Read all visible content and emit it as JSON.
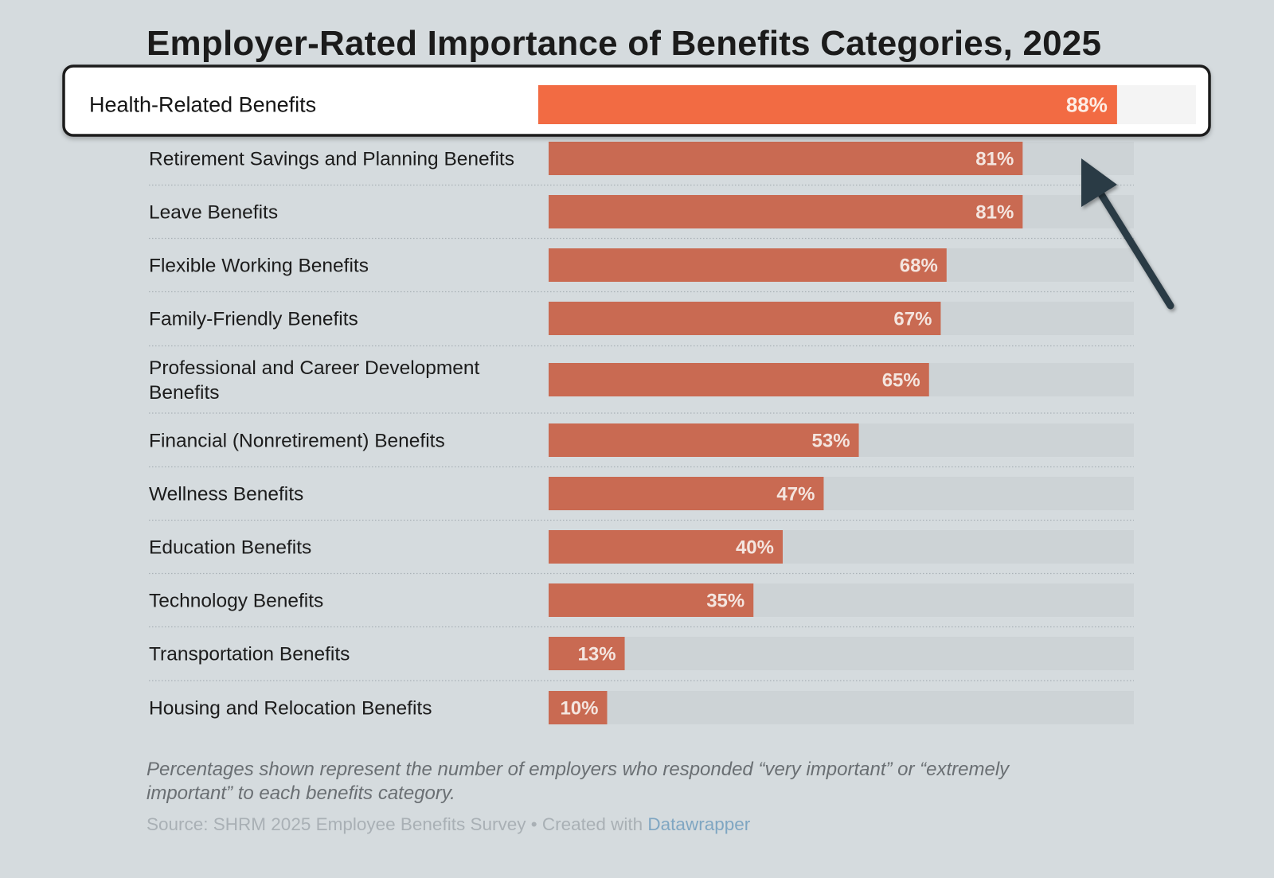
{
  "chart_data": {
    "type": "bar",
    "orientation": "horizontal",
    "title": "Employer-Rated Importance of Benefits Categories, 2025",
    "xlim": [
      0,
      100
    ],
    "value_suffix": "%",
    "highlighted_category": "Health-Related Benefits",
    "categories": [
      "Health-Related Benefits",
      "Retirement Savings and Planning Benefits",
      "Leave Benefits",
      "Flexible Working Benefits",
      "Family-Friendly Benefits",
      "Professional and Career Development Benefits",
      "Financial (Nonretirement) Benefits",
      "Wellness Benefits",
      "Education Benefits",
      "Technology Benefits",
      "Transportation Benefits",
      "Housing and Relocation Benefits"
    ],
    "values": [
      88,
      81,
      81,
      68,
      67,
      65,
      53,
      47,
      40,
      35,
      13,
      10
    ],
    "value_labels": [
      "88%",
      "81%",
      "81%",
      "68%",
      "67%",
      "65%",
      "53%",
      "47%",
      "40%",
      "35%",
      "13%",
      "10%"
    ],
    "footnote": "Percentages shown represent the number of employers who responded “very important” or “extremely important” to each benefits category.",
    "source_prefix": "Source: SHRM 2025 Employee Benefits Survey • Created with ",
    "source_link": "Datawrapper"
  },
  "colors": {
    "background": "#d5dbde",
    "bar": "#c96a52",
    "bar_highlight": "#f26b43",
    "track": "#cdd3d6",
    "track_highlight": "#f4f4f4",
    "arrow": "#2b3a44"
  }
}
